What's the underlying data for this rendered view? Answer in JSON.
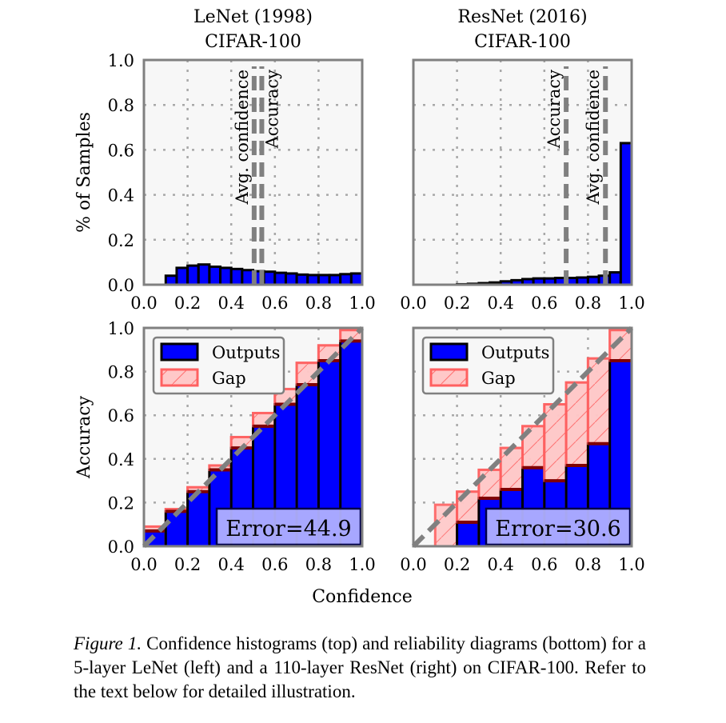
{
  "chart_data": [
    {
      "type": "bar",
      "panel": "top-left",
      "title_line1": "LeNet (1998)",
      "title_line2": "CIFAR-100",
      "ylabel": "% of Samples",
      "xlim": [
        0,
        1
      ],
      "ylim": [
        0,
        1
      ],
      "xticks": [
        "0.0",
        "0.2",
        "0.4",
        "0.6",
        "0.8",
        "1.0"
      ],
      "yticks": [
        "0.0",
        "0.2",
        "0.4",
        "0.6",
        "0.8",
        "1.0"
      ],
      "grid": true,
      "bin_width": 0.05,
      "bin_starts": [
        0.1,
        0.15,
        0.2,
        0.25,
        0.3,
        0.35,
        0.4,
        0.45,
        0.5,
        0.55,
        0.6,
        0.65,
        0.7,
        0.75,
        0.8,
        0.85,
        0.9,
        0.95
      ],
      "values": [
        0.04,
        0.075,
        0.085,
        0.09,
        0.08,
        0.075,
        0.07,
        0.065,
        0.06,
        0.058,
        0.053,
        0.05,
        0.045,
        0.043,
        0.043,
        0.043,
        0.047,
        0.05
      ],
      "vlines": [
        {
          "label": "Avg. confidence",
          "x": 0.505,
          "side": "left"
        },
        {
          "label": "Accuracy",
          "x": 0.54,
          "side": "right"
        }
      ]
    },
    {
      "type": "bar",
      "panel": "top-right",
      "title_line1": "ResNet (2016)",
      "title_line2": "CIFAR-100",
      "xlim": [
        0,
        1
      ],
      "ylim": [
        0,
        1
      ],
      "xticks": [
        "0.0",
        "0.2",
        "0.4",
        "0.6",
        "0.8",
        "1.0"
      ],
      "grid": true,
      "bin_width": 0.05,
      "bin_starts": [
        0.2,
        0.25,
        0.3,
        0.35,
        0.4,
        0.45,
        0.5,
        0.55,
        0.6,
        0.65,
        0.7,
        0.75,
        0.8,
        0.85,
        0.9,
        0.95
      ],
      "values": [
        0.002,
        0.004,
        0.007,
        0.01,
        0.015,
        0.02,
        0.025,
        0.028,
        0.028,
        0.03,
        0.03,
        0.032,
        0.035,
        0.04,
        0.055,
        0.63
      ],
      "vlines": [
        {
          "label": "Accuracy",
          "x": 0.7,
          "side": "left"
        },
        {
          "label": "Avg. confidence",
          "x": 0.88,
          "side": "left"
        }
      ]
    },
    {
      "type": "bar",
      "panel": "bottom-left",
      "ylabel": "Accuracy",
      "xlim": [
        0,
        1
      ],
      "ylim": [
        0,
        1
      ],
      "xticks": [
        "0.0",
        "0.2",
        "0.4",
        "0.6",
        "0.8",
        "1.0"
      ],
      "yticks": [
        "0.0",
        "0.2",
        "0.4",
        "0.6",
        "0.8",
        "1.0"
      ],
      "grid": true,
      "bin_width": 0.1,
      "bin_starts": [
        0.0,
        0.1,
        0.2,
        0.3,
        0.4,
        0.5,
        0.6,
        0.7,
        0.8,
        0.9
      ],
      "series": [
        {
          "name": "Outputs",
          "values": [
            0.07,
            0.16,
            0.25,
            0.35,
            0.45,
            0.55,
            0.65,
            0.74,
            0.85,
            0.94
          ]
        },
        {
          "name": "Gap",
          "values": [
            0.09,
            0.17,
            0.27,
            0.37,
            0.5,
            0.61,
            0.72,
            0.84,
            0.92,
            0.99
          ]
        }
      ],
      "legend": [
        "Outputs",
        "Gap"
      ],
      "legend_position": "top-left",
      "annotation": "Error=44.9"
    },
    {
      "type": "bar",
      "panel": "bottom-right",
      "xlim": [
        0,
        1
      ],
      "ylim": [
        0,
        1
      ],
      "xticks": [
        "0.0",
        "0.2",
        "0.4",
        "0.6",
        "0.8",
        "1.0"
      ],
      "grid": true,
      "bin_width": 0.1,
      "bin_starts": [
        0.0,
        0.1,
        0.2,
        0.3,
        0.4,
        0.5,
        0.6,
        0.7,
        0.8,
        0.9
      ],
      "series": [
        {
          "name": "Outputs",
          "values": [
            0,
            0,
            0.11,
            0.22,
            0.26,
            0.36,
            0.3,
            0.37,
            0.47,
            0.85
          ]
        },
        {
          "name": "Gap",
          "values": [
            0,
            0.19,
            0.25,
            0.35,
            0.45,
            0.55,
            0.65,
            0.75,
            0.86,
            0.99
          ]
        }
      ],
      "legend": [
        "Outputs",
        "Gap"
      ],
      "legend_position": "top-left",
      "annotation": "Error=30.6"
    }
  ],
  "shared_xlabel": "Confidence",
  "colors": {
    "outputs": "#0000ff",
    "gap_fill": "#ffc8c8",
    "gap_edge": "#ff6060",
    "overlap": "#7a4fd6",
    "frame": "#808080",
    "background": "#f7f7f7"
  },
  "caption": {
    "label": "Figure 1.",
    "text": " Confidence histograms (top) and reliability diagrams (bottom) for a 5-layer LeNet (left) and a 110-layer ResNet (right) on CIFAR-100. Refer to the text below for detailed illustration."
  }
}
